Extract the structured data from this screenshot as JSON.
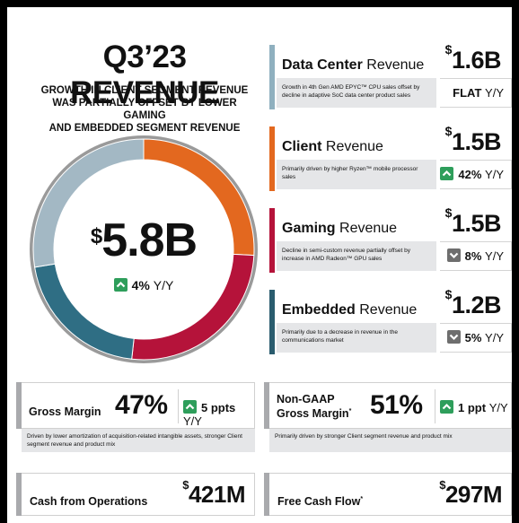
{
  "title": "Q3’23 REVENUE",
  "subtitle": [
    "GROWTH IN CLIENT SEGMENT REVENUE",
    "WAS PARTIALLY OFFSET BY LOWER GAMING",
    "AND EMBEDDED SEGMENT REVENUE"
  ],
  "total": {
    "currency": "$",
    "amount": "5.8B",
    "change": "4%",
    "unit": "Y/Y",
    "direction": "up"
  },
  "donut": {
    "segments": [
      {
        "name": "Client",
        "value": 1.5,
        "color": "#e3681f"
      },
      {
        "name": "Gaming",
        "value": 1.5,
        "color": "#b5133a"
      },
      {
        "name": "Embedded",
        "value": 1.2,
        "color": "#2f6e84"
      },
      {
        "name": "Data Center",
        "value": 1.6,
        "color": "#a3b8c4"
      }
    ]
  },
  "segments": [
    {
      "bold": "Data Center",
      "rest": " Revenue",
      "currency": "$",
      "amount": "1.6B",
      "color": "#8fb0bf",
      "desc": "Growth in 4th Gen AMD EPYC™ CPU sales offset by decline in adaptive SoC data center product sales",
      "change": "FLAT",
      "unit": "Y/Y",
      "direction": "flat"
    },
    {
      "bold": "Client",
      "rest": " Revenue",
      "currency": "$",
      "amount": "1.5B",
      "color": "#e3681f",
      "desc": "Primarily driven by higher Ryzen™ mobile processor sales",
      "change": "42%",
      "unit": "Y/Y",
      "direction": "up"
    },
    {
      "bold": "Gaming",
      "rest": " Revenue",
      "currency": "$",
      "amount": "1.5B",
      "color": "#b5133a",
      "desc": "Decline in semi-custom revenue partially offset by increase in AMD Radeon™ GPU sales",
      "change": "8%",
      "unit": "Y/Y",
      "direction": "down"
    },
    {
      "bold": "Embedded",
      "rest": " Revenue",
      "currency": "$",
      "amount": "1.2B",
      "color": "#2a5c6e",
      "desc": "Primarily due to a decrease in revenue in the communications market",
      "change": "5%",
      "unit": "Y/Y",
      "direction": "down"
    }
  ],
  "gross_margin": {
    "label": "Gross Margin",
    "value": "47%",
    "change": "5 ppts",
    "unit": "Y/Y",
    "direction": "up",
    "note": "Driven by lower amortization of acquisition-related intangible assets, stronger Client segment revenue and product mix"
  },
  "non_gaap_margin": {
    "label_line1": "Non-GAAP",
    "label_line2": "Gross Margin",
    "label_mark": "*",
    "value": "51%",
    "change": "1 ppt",
    "unit": "Y/Y",
    "direction": "up",
    "note": "Primarily driven by stronger Client segment revenue and product mix"
  },
  "cash_ops": {
    "label": "Cash from Operations",
    "currency": "$",
    "amount": "421M"
  },
  "fcf": {
    "label": "Free Cash Flow",
    "label_mark": "*",
    "currency": "$",
    "amount": "297M"
  }
}
